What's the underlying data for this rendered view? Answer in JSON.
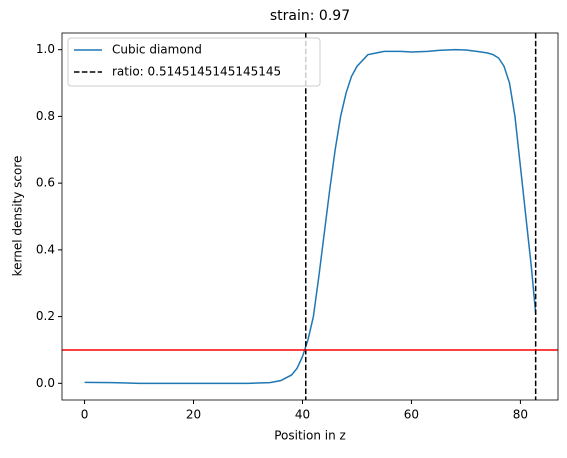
{
  "chart_data": {
    "type": "line",
    "title": "strain: 0.97",
    "x_label": "Position in z",
    "y_label": "kernel density score",
    "x": [
      0,
      5,
      10,
      15,
      20,
      25,
      30,
      34,
      36,
      38,
      39,
      40,
      41,
      42,
      43,
      44,
      45,
      46,
      47,
      48,
      49,
      50,
      52,
      55,
      58,
      60,
      63,
      65,
      68,
      70,
      72,
      74,
      75,
      76,
      77,
      78,
      79,
      80,
      81,
      82,
      82.8
    ],
    "series": [
      {
        "name": "Cubic diamond",
        "color": "#1f77b4",
        "values": [
          0.003,
          0.002,
          0.0,
          0.0,
          0.0,
          0.0,
          0.0,
          0.002,
          0.008,
          0.025,
          0.045,
          0.08,
          0.13,
          0.2,
          0.32,
          0.45,
          0.58,
          0.7,
          0.8,
          0.87,
          0.92,
          0.95,
          0.985,
          0.995,
          0.995,
          0.993,
          0.995,
          0.998,
          1.0,
          0.999,
          0.995,
          0.99,
          0.985,
          0.975,
          0.95,
          0.9,
          0.8,
          0.65,
          0.5,
          0.35,
          0.21
        ]
      }
    ],
    "vlines": {
      "name": "ratio: 0.5145145145145145",
      "color": "#000000",
      "values": [
        40.6,
        82.8
      ]
    },
    "hline": {
      "value": 0.1,
      "color": "#ff0000"
    },
    "xlim": [
      -4.14,
      86.9
    ],
    "ylim": [
      -0.05,
      1.05
    ],
    "xticks": [
      0,
      20,
      40,
      60,
      80
    ],
    "yticks": [
      {
        "value": 0,
        "label": "0.0"
      },
      {
        "value": 0.2,
        "label": "0.2"
      },
      {
        "value": 0.4,
        "label": "0.4"
      },
      {
        "value": 0.6,
        "label": "0.6"
      },
      {
        "value": 0.8,
        "label": "0.8"
      },
      {
        "value": 1,
        "label": "1.0"
      }
    ],
    "legend": "upper left"
  }
}
